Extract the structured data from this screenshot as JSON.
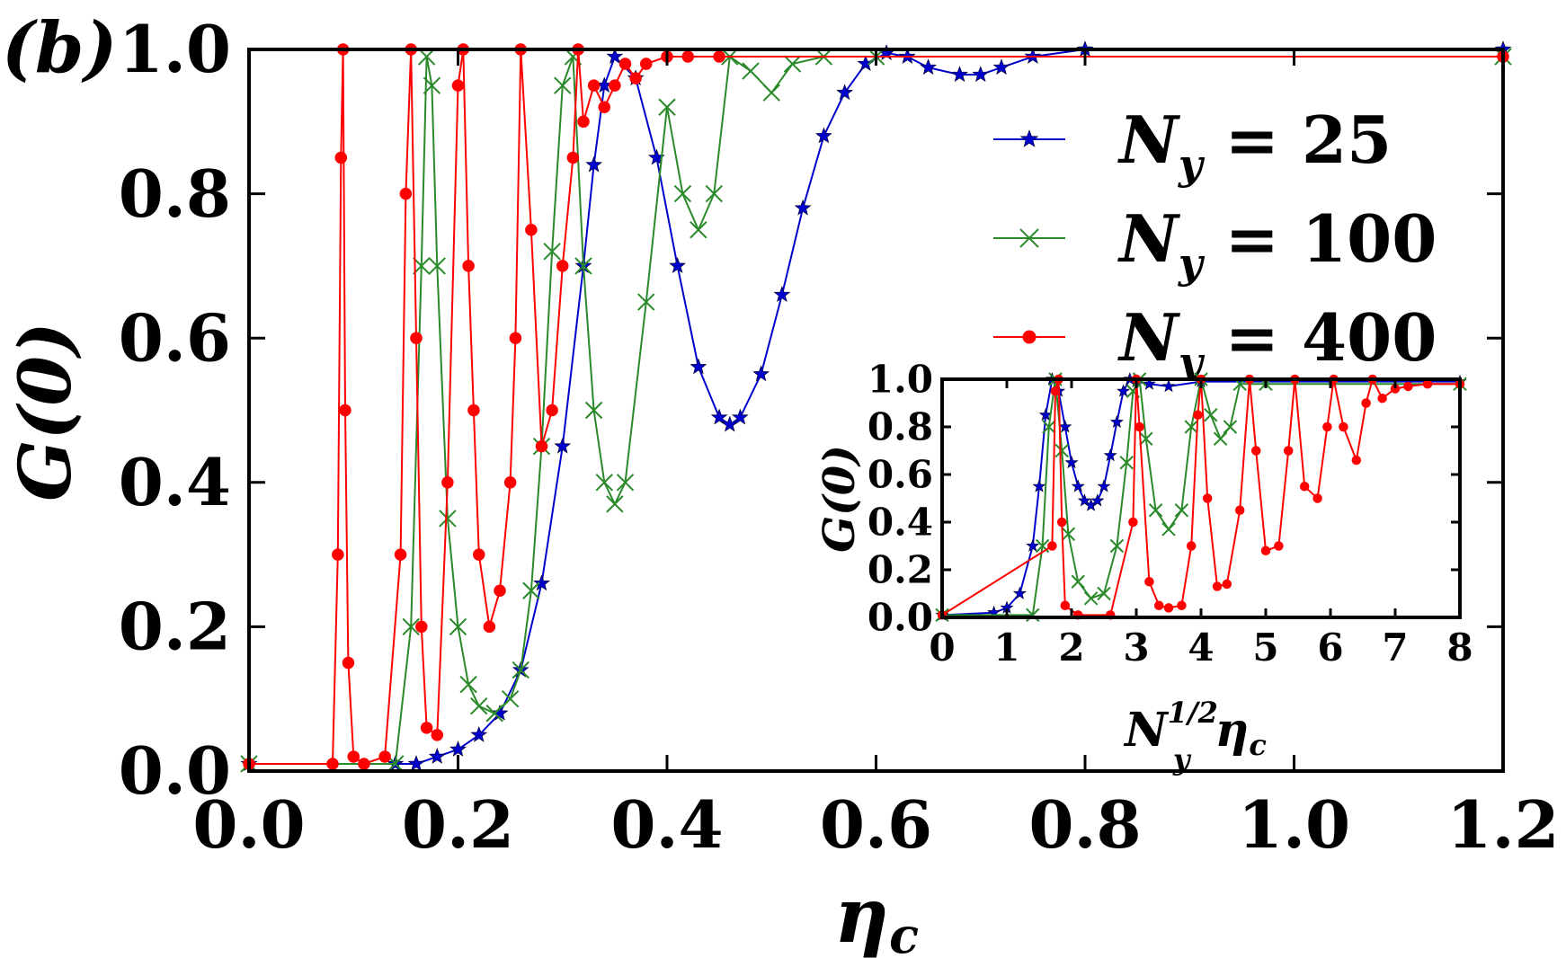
{
  "panel_label": "(b)",
  "chart_data": [
    {
      "type": "line",
      "name": "main",
      "title": "",
      "xlabel": "η",
      "xlabel_sub": "c",
      "ylabel": "G(0)",
      "xlim": [
        0.0,
        1.2
      ],
      "ylim": [
        0.0,
        1.0
      ],
      "xticks": [
        "0.0",
        "0.2",
        "0.4",
        "0.6",
        "0.8",
        "1.0",
        "1.2"
      ],
      "yticks": [
        "0.0",
        "0.2",
        "0.4",
        "0.6",
        "0.8",
        "1.0"
      ],
      "legend_position": "upper-right",
      "series": [
        {
          "name": "N_y = 25",
          "legend": {
            "base": "N",
            "sub": "y",
            "rest": " = 25"
          },
          "color": "#0000cc",
          "marker": "star",
          "x": [
            0.0,
            0.14,
            0.16,
            0.18,
            0.2,
            0.22,
            0.24,
            0.26,
            0.28,
            0.3,
            0.32,
            0.33,
            0.34,
            0.35,
            0.37,
            0.39,
            0.41,
            0.43,
            0.45,
            0.46,
            0.47,
            0.49,
            0.51,
            0.53,
            0.55,
            0.57,
            0.59,
            0.61,
            0.63,
            0.65,
            0.68,
            0.7,
            0.72,
            0.75,
            0.8,
            1.2
          ],
          "y": [
            0.01,
            0.01,
            0.01,
            0.02,
            0.03,
            0.05,
            0.08,
            0.14,
            0.26,
            0.45,
            0.7,
            0.84,
            0.95,
            0.99,
            0.96,
            0.85,
            0.7,
            0.56,
            0.49,
            0.48,
            0.49,
            0.55,
            0.66,
            0.78,
            0.88,
            0.94,
            0.98,
            0.995,
            0.99,
            0.975,
            0.965,
            0.965,
            0.975,
            0.99,
            1.0,
            1.0
          ]
        },
        {
          "name": "N_y = 100",
          "legend": {
            "base": "N",
            "sub": "y",
            "rest": " = 100"
          },
          "color": "#2a8a2a",
          "marker": "x",
          "x": [
            0.0,
            0.14,
            0.155,
            0.165,
            0.17,
            0.175,
            0.18,
            0.19,
            0.2,
            0.21,
            0.22,
            0.235,
            0.25,
            0.26,
            0.27,
            0.28,
            0.29,
            0.3,
            0.31,
            0.32,
            0.33,
            0.34,
            0.35,
            0.36,
            0.38,
            0.4,
            0.415,
            0.43,
            0.445,
            0.46,
            0.48,
            0.5,
            0.52,
            0.55,
            0.6,
            1.2
          ],
          "y": [
            0.01,
            0.01,
            0.2,
            0.7,
            0.99,
            0.95,
            0.7,
            0.35,
            0.2,
            0.12,
            0.09,
            0.08,
            0.1,
            0.14,
            0.25,
            0.45,
            0.72,
            0.95,
            0.99,
            0.7,
            0.5,
            0.4,
            0.37,
            0.4,
            0.65,
            0.92,
            0.8,
            0.75,
            0.8,
            0.99,
            0.97,
            0.94,
            0.98,
            0.99,
            0.99,
            0.99
          ]
        },
        {
          "name": "N_y = 400",
          "legend": {
            "base": "N",
            "sub": "y",
            "rest": " = 400"
          },
          "color": "#ff0000",
          "marker": "dot",
          "x": [
            0.0,
            0.08,
            0.085,
            0.088,
            0.09,
            0.092,
            0.095,
            0.1,
            0.11,
            0.13,
            0.145,
            0.15,
            0.155,
            0.16,
            0.165,
            0.17,
            0.18,
            0.19,
            0.2,
            0.205,
            0.21,
            0.215,
            0.22,
            0.23,
            0.24,
            0.25,
            0.255,
            0.26,
            0.27,
            0.28,
            0.29,
            0.3,
            0.31,
            0.315,
            0.32,
            0.33,
            0.34,
            0.35,
            0.36,
            0.37,
            0.38,
            0.4,
            0.42,
            0.45,
            1.2
          ],
          "y": [
            0.01,
            0.01,
            0.3,
            0.85,
            1.0,
            0.5,
            0.15,
            0.02,
            0.01,
            0.02,
            0.3,
            0.8,
            1.0,
            0.6,
            0.2,
            0.06,
            0.05,
            0.4,
            0.95,
            1.0,
            0.7,
            0.5,
            0.3,
            0.2,
            0.25,
            0.4,
            0.6,
            1.0,
            0.75,
            0.45,
            0.5,
            0.7,
            0.85,
            1.0,
            0.9,
            0.95,
            0.92,
            0.95,
            0.98,
            0.96,
            0.98,
            0.99,
            0.99,
            0.99,
            0.99
          ]
        }
      ]
    },
    {
      "type": "line",
      "name": "inset",
      "title": "",
      "xlabel": "N_y^{1/2} η_c",
      "xlabel_parts": {
        "base": "N",
        "sup": "1/2",
        "sub": "y",
        "eta": "η",
        "eta_sub": "c"
      },
      "ylabel": "G(0)",
      "xlim": [
        0,
        8
      ],
      "ylim": [
        0.0,
        1.0
      ],
      "xticks": [
        "0",
        "1",
        "2",
        "3",
        "4",
        "5",
        "6",
        "7",
        "8"
      ],
      "yticks": [
        "0.0",
        "0.2",
        "0.4",
        "0.6",
        "0.8",
        "1.0"
      ],
      "series": [
        {
          "name": "N_y = 25",
          "color": "#0000cc",
          "marker": "star",
          "x": [
            0,
            0.8,
            1.0,
            1.2,
            1.4,
            1.5,
            1.6,
            1.7,
            1.8,
            1.9,
            2.0,
            2.1,
            2.2,
            2.3,
            2.4,
            2.5,
            2.6,
            2.7,
            2.8,
            2.9,
            3.0,
            3.2,
            3.5,
            4.0,
            8.0
          ],
          "y": [
            0.01,
            0.02,
            0.04,
            0.1,
            0.3,
            0.55,
            0.85,
            1.0,
            0.95,
            0.8,
            0.65,
            0.55,
            0.49,
            0.47,
            0.49,
            0.55,
            0.68,
            0.82,
            0.95,
            1.0,
            0.99,
            0.98,
            0.97,
            0.99,
            0.99
          ]
        },
        {
          "name": "N_y = 100",
          "color": "#2a8a2a",
          "marker": "x",
          "x": [
            0,
            1.4,
            1.55,
            1.65,
            1.75,
            1.85,
            1.95,
            2.1,
            2.3,
            2.5,
            2.7,
            2.85,
            2.95,
            3.05,
            3.15,
            3.3,
            3.5,
            3.7,
            3.85,
            4.0,
            4.15,
            4.3,
            4.45,
            4.6,
            5.0,
            8.0
          ],
          "y": [
            0.01,
            0.01,
            0.3,
            0.8,
            1.0,
            0.7,
            0.35,
            0.15,
            0.08,
            0.1,
            0.3,
            0.65,
            0.95,
            1.0,
            0.75,
            0.45,
            0.37,
            0.45,
            0.8,
            1.0,
            0.85,
            0.75,
            0.8,
            0.98,
            0.98,
            0.98
          ]
        },
        {
          "name": "N_y = 400",
          "color": "#ff0000",
          "marker": "dot",
          "x": [
            0,
            1.7,
            1.75,
            1.8,
            1.85,
            1.9,
            2.1,
            2.6,
            2.95,
            3.0,
            3.05,
            3.2,
            3.35,
            3.5,
            3.7,
            3.85,
            3.95,
            4.0,
            4.1,
            4.25,
            4.4,
            4.6,
            4.75,
            4.85,
            5.0,
            5.2,
            5.35,
            5.45,
            5.6,
            5.8,
            5.95,
            6.05,
            6.2,
            6.4,
            6.55,
            6.65,
            6.8,
            7.0,
            7.2,
            7.5,
            8.0
          ],
          "y": [
            0.01,
            0.3,
            0.95,
            1.0,
            0.4,
            0.05,
            0.01,
            0.01,
            0.4,
            1.0,
            0.8,
            0.15,
            0.05,
            0.04,
            0.05,
            0.3,
            0.85,
            1.0,
            0.5,
            0.13,
            0.14,
            0.45,
            1.0,
            0.7,
            0.28,
            0.3,
            0.7,
            1.0,
            0.55,
            0.5,
            0.8,
            1.0,
            0.8,
            0.66,
            0.9,
            1.0,
            0.92,
            0.96,
            0.97,
            0.98,
            0.98
          ]
        }
      ]
    }
  ]
}
